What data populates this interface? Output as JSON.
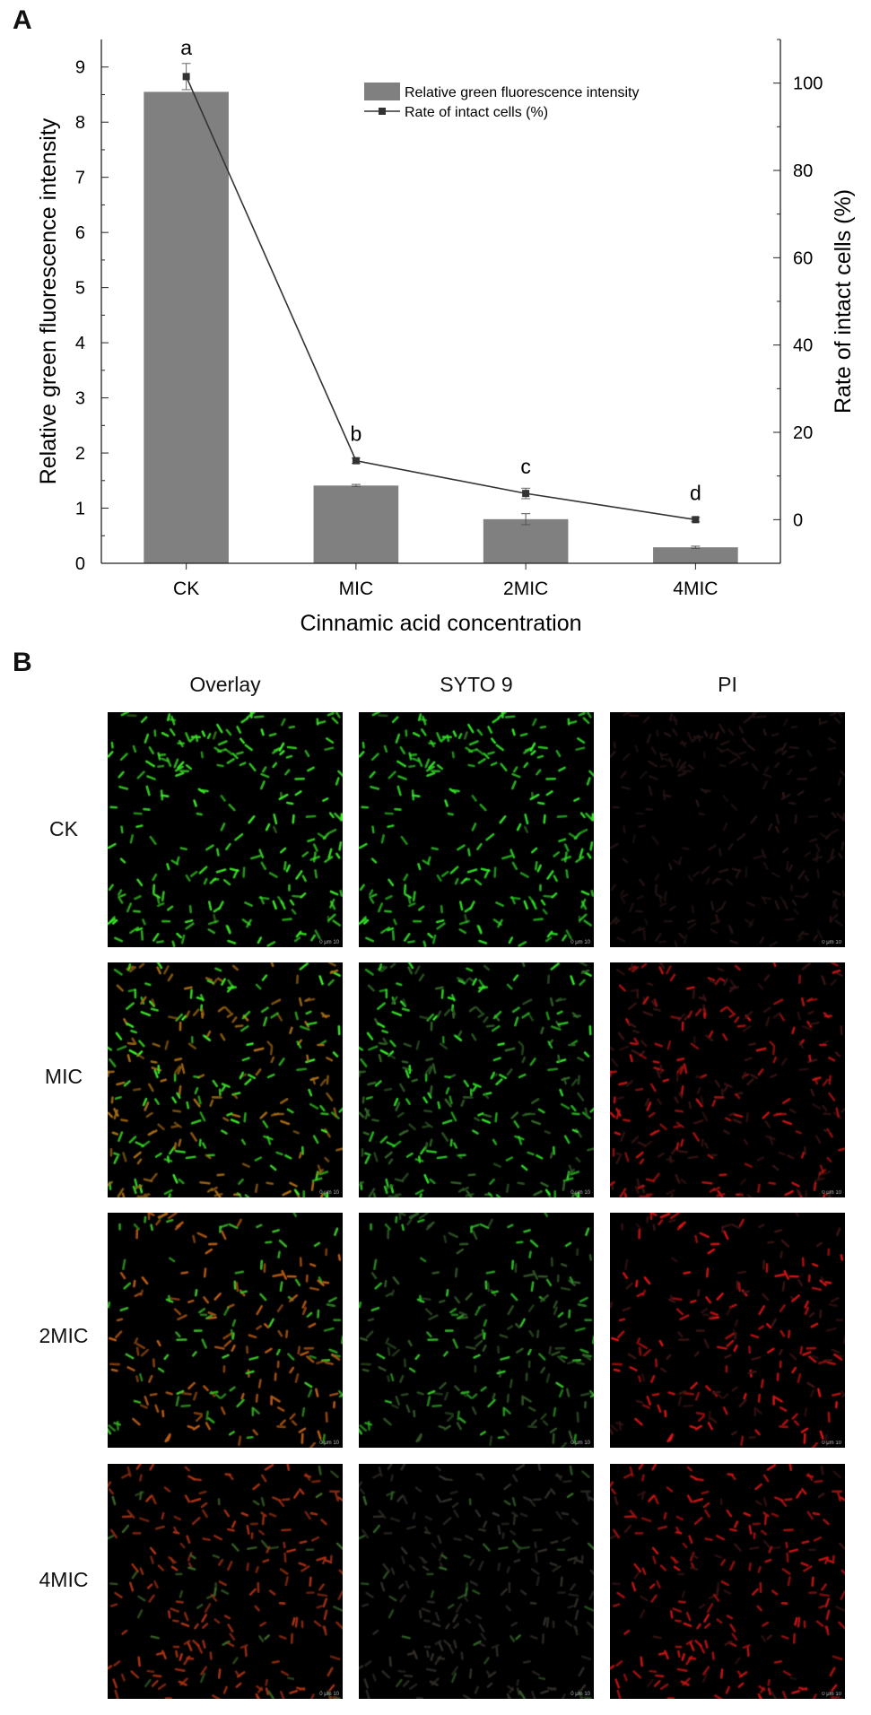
{
  "panels": {
    "a": "A",
    "b": "B"
  },
  "chart_data": {
    "type": "bar+line",
    "xlabel": "Cinnamic acid concentration",
    "ylabel": "Relative green fluorescence intensity",
    "y2label": "Rate of intact cells (%)",
    "categories": [
      "CK",
      "MIC",
      "2MIC",
      "4MIC"
    ],
    "ylim": [
      0,
      9.5
    ],
    "y_ticks": [
      "0",
      "1",
      "2",
      "3",
      "4",
      "5",
      "6",
      "7",
      "8",
      "9"
    ],
    "y2lim": [
      -10,
      110
    ],
    "y2_ticks": [
      "0",
      "20",
      "40",
      "60",
      "80",
      "100"
    ],
    "legend_position": "top-right",
    "series": [
      {
        "name": "Relative green fluorescence intensity",
        "kind": "bar",
        "color": "#808080",
        "values": [
          8.55,
          1.41,
          0.8,
          0.29
        ],
        "errors": [
          0,
          0.02,
          0.1,
          0.02
        ]
      },
      {
        "name": "Rate of intact cells (%)",
        "kind": "line",
        "color": "#333333",
        "axis": "right",
        "values": [
          101.5,
          13.5,
          6,
          0
        ],
        "errors": [
          3,
          0.6,
          1.2,
          0.5
        ]
      }
    ],
    "significance": [
      "a",
      "b",
      "c",
      "d"
    ]
  },
  "micrographs": {
    "columns": [
      "Overlay",
      "SYTO 9",
      "PI"
    ],
    "rows": [
      "CK",
      "MIC",
      "2MIC",
      "4MIC"
    ],
    "scale_label": "0 μm 10"
  }
}
